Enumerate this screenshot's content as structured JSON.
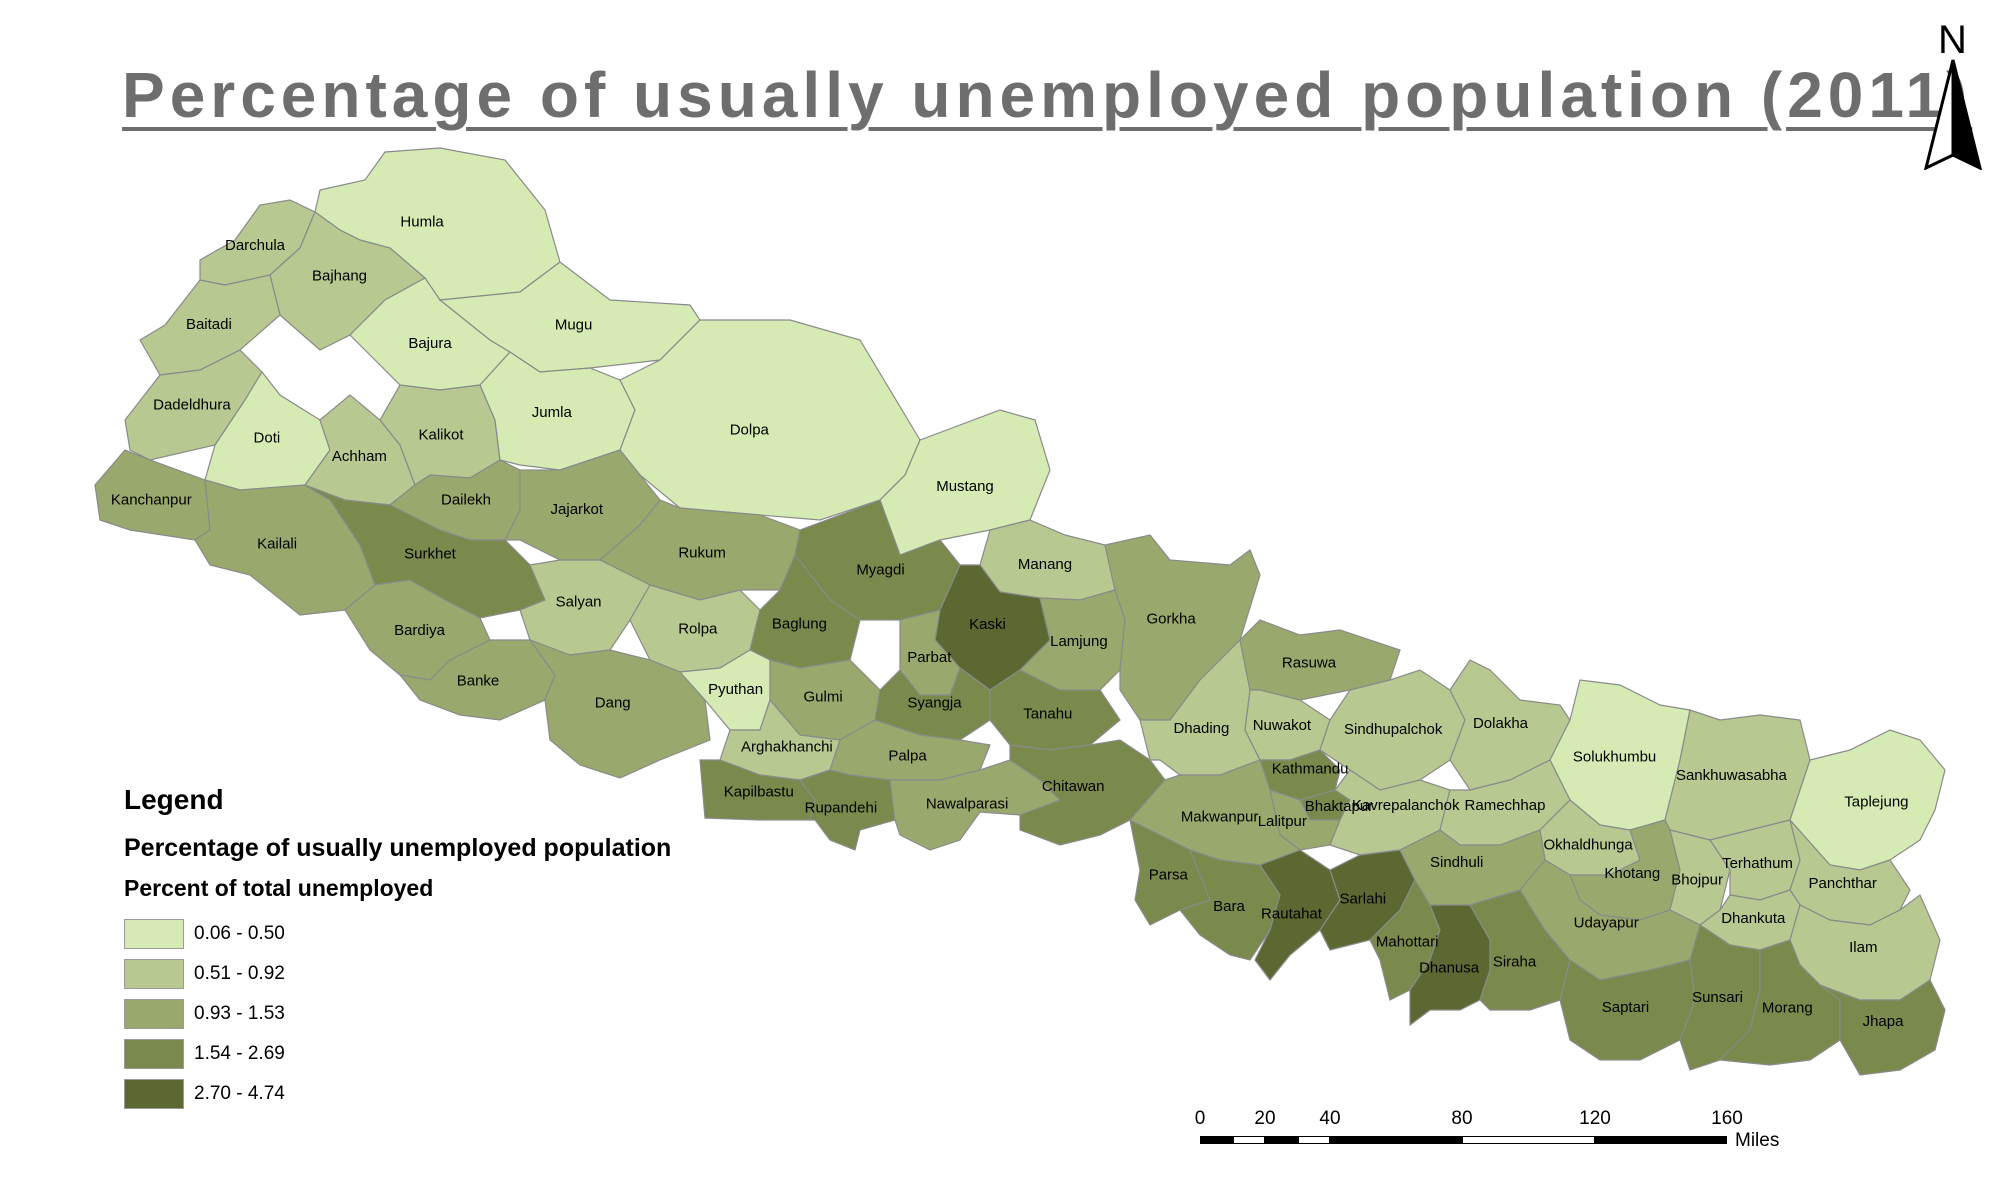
{
  "title": "Percentage of usually unemployed population (2011)",
  "north_label": "N",
  "legend": {
    "heading": "Legend",
    "subtitle": "Percentage of usually unemployed population",
    "field": "Percent of total unemployed",
    "classes": [
      {
        "label": "0.06 - 0.50",
        "color": "#d6ebb4"
      },
      {
        "label": "0.51 - 0.92",
        "color": "#b7c990"
      },
      {
        "label": "0.93 - 1.53",
        "color": "#99a96d"
      },
      {
        "label": "1.54 - 2.69",
        "color": "#7a8a4d"
      },
      {
        "label": "2.70 - 4.74",
        "color": "#5b6832"
      }
    ]
  },
  "scale": {
    "ticks": [
      "0",
      "20",
      "40",
      "80",
      "120",
      "160"
    ],
    "units": "Miles"
  },
  "districts": {
    "Humla": 0,
    "Darchula": 1,
    "Bajhang": 1,
    "Baitadi": 1,
    "Bajura": 0,
    "Mugu": 0,
    "Dadeldhura": 1,
    "Doti": 0,
    "Achham": 1,
    "Kalikot": 1,
    "Jumla": 0,
    "Dolpa": 0,
    "Mustang": 0,
    "Kanchanpur": 2,
    "Kailali": 2,
    "Dailekh": 2,
    "Jajarkot": 2,
    "Surkhet": 3,
    "Bardiya": 2,
    "Rukum": 2,
    "Salyan": 1,
    "Rolpa": 1,
    "Manang": 1,
    "Myagdi": 3,
    "Baglung": 3,
    "Kaski": 4,
    "Lamjung": 2,
    "Gorkha": 2,
    "Parbat": 2,
    "Banke": 2,
    "Dang": 2,
    "Pyuthan": 0,
    "Gulmi": 2,
    "Syangja": 3,
    "Tanahu": 3,
    "Arghakhanchi": 1,
    "Palpa": 2,
    "Kapilbastu": 3,
    "Rupandehi": 3,
    "Nawalparasi": 2,
    "Chitawan": 3,
    "Dhading": 1,
    "Rasuwa": 2,
    "Nuwakot": 1,
    "Sindhupalchok": 1,
    "Dolakha": 1,
    "Solukhumbu": 0,
    "Sankhuwasabha": 1,
    "Taplejung": 0,
    "Kathmandu": 3,
    "Bhaktapur": 3,
    "Lalitpur": 2,
    "Kavrepalanchok": 1,
    "Makwanpur": 2,
    "Ramechhap": 1,
    "Okhaldhunga": 1,
    "Khotang": 2,
    "Bhojpur": 1,
    "Terhathum": 1,
    "Panchthar": 1,
    "Dhankuta": 1,
    "Ilam": 1,
    "Parsa": 3,
    "Bara": 3,
    "Rautahat": 4,
    "Sarlahi": 4,
    "Sindhuli": 2,
    "Mahottari": 3,
    "Dhanusa": 4,
    "Siraha": 3,
    "Udayapur": 2,
    "Saptari": 3,
    "Sunsari": 3,
    "Morang": 3,
    "Jhapa": 3
  }
}
